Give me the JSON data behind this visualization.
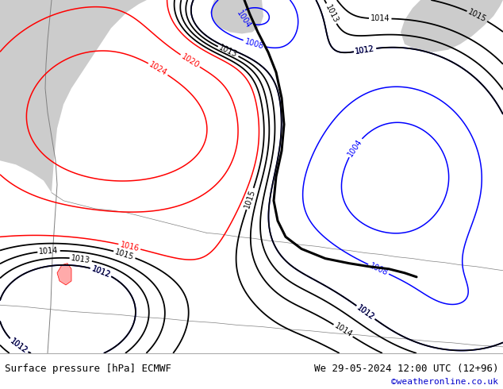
{
  "title_left": "Surface pressure [hPa] ECMWF",
  "title_right": "We 29-05-2024 12:00 UTC (12+96)",
  "credit": "©weatheronline.co.uk",
  "title_fontsize": 9,
  "credit_fontsize": 8,
  "credit_color": "#0000cc",
  "land_color": "#90ee90",
  "sea_color": "#cccccc",
  "border_color": "#808080",
  "fig_width": 6.34,
  "fig_height": 4.9,
  "dpi": 100,
  "red_levels": [
    1016,
    1020,
    1024
  ],
  "blue_levels": [
    1004,
    1008,
    1012
  ],
  "black_levels": [
    1012,
    1013
  ]
}
